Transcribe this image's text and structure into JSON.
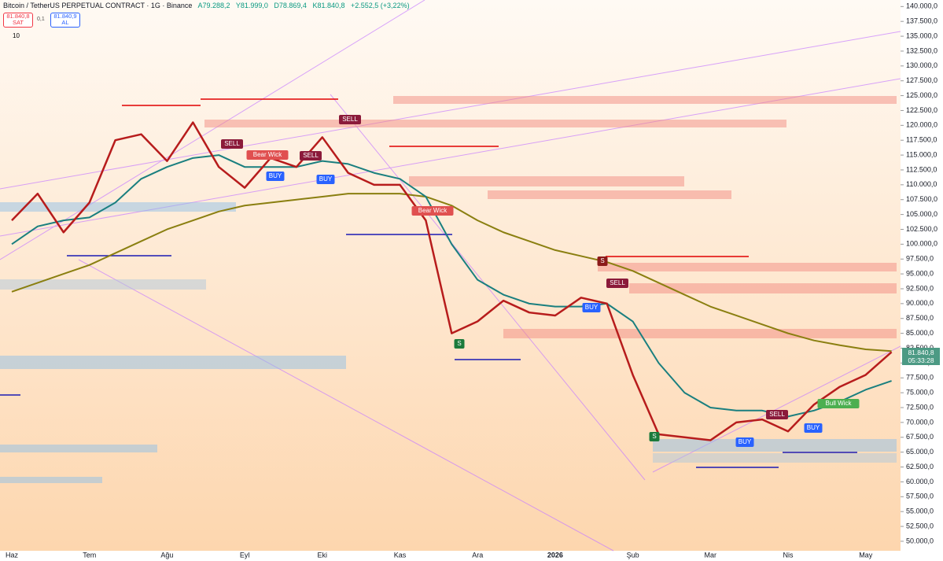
{
  "header": {
    "symbol": "Bitcoin / TetherUS PERPETUAL CONTRACT · 1G · Binance",
    "ohlc": [
      "A79.288,2",
      "Y81.999,0",
      "D78.869,4",
      "K81.840,8"
    ],
    "change": "+2.552,5 (+3,22%)"
  },
  "trade": {
    "sell_price": "81.840,8",
    "sell_label": "SAT",
    "spread": "0,1",
    "buy_price": "81.840,9",
    "buy_label": "AL",
    "quantity": "10"
  },
  "price_tag": {
    "price": "81.840,8",
    "countdown": "05:33:28"
  },
  "annotations": [
    "SELL",
    "Bear Wick",
    "BUY",
    "SELL",
    "BUY",
    "SELL",
    "Bear Wick",
    "S",
    "S",
    "BUY",
    "SELL",
    "S",
    "SELL",
    "BUY",
    "BUY",
    "Bull Wick"
  ],
  "chart_data": {
    "type": "line",
    "categories": [
      "Haz",
      null,
      null,
      "Tem",
      null,
      null,
      "Ağu",
      null,
      null,
      "Eyl",
      null,
      null,
      "Eki",
      null,
      null,
      "Kas",
      null,
      null,
      "Ara",
      null,
      null,
      "2026",
      null,
      null,
      "Şub",
      null,
      null,
      "Mar",
      null,
      null,
      "Nis",
      null,
      null,
      "May",
      null
    ],
    "series": [
      {
        "color": "#8a7f10",
        "values": [
          92000,
          93500,
          95000,
          96500,
          98500,
          100500,
          102500,
          104000,
          105500,
          106500,
          107000,
          107500,
          108000,
          108500,
          108500,
          108500,
          108000,
          106500,
          104000,
          102000,
          100500,
          99000,
          98000,
          97000,
          95500,
          93500,
          91500,
          89500,
          88000,
          86500,
          85000,
          83800,
          83000,
          82300,
          82000
        ]
      },
      {
        "color": "#1a7f7f",
        "values": [
          100000,
          103000,
          104000,
          104500,
          107000,
          111000,
          113000,
          114500,
          115000,
          113000,
          113000,
          113000,
          114000,
          113500,
          112000,
          111000,
          108000,
          100000,
          94000,
          91500,
          90000,
          89500,
          89500,
          90000,
          87000,
          80000,
          75000,
          72500,
          72000,
          72000,
          71000,
          72000,
          73500,
          75500,
          77000
        ]
      },
      {
        "color": "#b71c1c",
        "values": [
          104000,
          108500,
          102000,
          107000,
          117500,
          118500,
          114000,
          120500,
          113000,
          109500,
          114500,
          113000,
          118000,
          112000,
          110000,
          110000,
          104000,
          85000,
          87000,
          90500,
          88500,
          88000,
          91000,
          90000,
          78000,
          68000,
          67500,
          67000,
          70000,
          70500,
          68500,
          73000,
          76000,
          78000,
          81840.8
        ]
      }
    ],
    "ylim": [
      48400,
      141100
    ],
    "yticks": [
      {
        "value": 50000,
        "label": "50.000,0"
      },
      {
        "value": 52500,
        "label": "52.500,0"
      },
      {
        "value": 55000,
        "label": "55.000,0"
      },
      {
        "value": 57500,
        "label": "57.500,0"
      },
      {
        "value": 60000,
        "label": "60.000,0"
      },
      {
        "value": 62500,
        "label": "62.500,0"
      },
      {
        "value": 65000,
        "label": "65.000,0"
      },
      {
        "value": 67500,
        "label": "67.500,0"
      },
      {
        "value": 70000,
        "label": "70.000,0"
      },
      {
        "value": 72500,
        "label": "72.500,0"
      },
      {
        "value": 75000,
        "label": "75.000,0"
      },
      {
        "value": 77500,
        "label": "77.500,0"
      },
      {
        "value": 80000,
        "label": "80.000,0"
      },
      {
        "value": 82500,
        "label": "82.500,0"
      },
      {
        "value": 85000,
        "label": "85.000,0"
      },
      {
        "value": 87500,
        "label": "87.500,0"
      },
      {
        "value": 90000,
        "label": "90.000,0"
      },
      {
        "value": 92500,
        "label": "92.500,0"
      },
      {
        "value": 95000,
        "label": "95.000,0"
      },
      {
        "value": 97500,
        "label": "97.500,0"
      },
      {
        "value": 100000,
        "label": "100.000,0"
      },
      {
        "value": 102500,
        "label": "102.500,0"
      },
      {
        "value": 105000,
        "label": "105.000,0"
      },
      {
        "value": 107500,
        "label": "107.500,0"
      },
      {
        "value": 110000,
        "label": "110.000,0"
      },
      {
        "value": 112500,
        "label": "112.500,0"
      },
      {
        "value": 115000,
        "label": "115.000,0"
      },
      {
        "value": 117500,
        "label": "117.500,0"
      },
      {
        "value": 120000,
        "label": "120.000,0"
      },
      {
        "value": 122500,
        "label": "122.500,0"
      },
      {
        "value": 125000,
        "label": "125.000,0"
      },
      {
        "value": 127500,
        "label": "127.500,0"
      },
      {
        "value": 130000,
        "label": "130.000,0"
      },
      {
        "value": 132500,
        "label": "132.500,0"
      },
      {
        "value": 135000,
        "label": "135.000,0"
      },
      {
        "value": 137500,
        "label": "137.500,0"
      },
      {
        "value": 140000,
        "label": "140.000,0"
      }
    ],
    "grid": false
  }
}
